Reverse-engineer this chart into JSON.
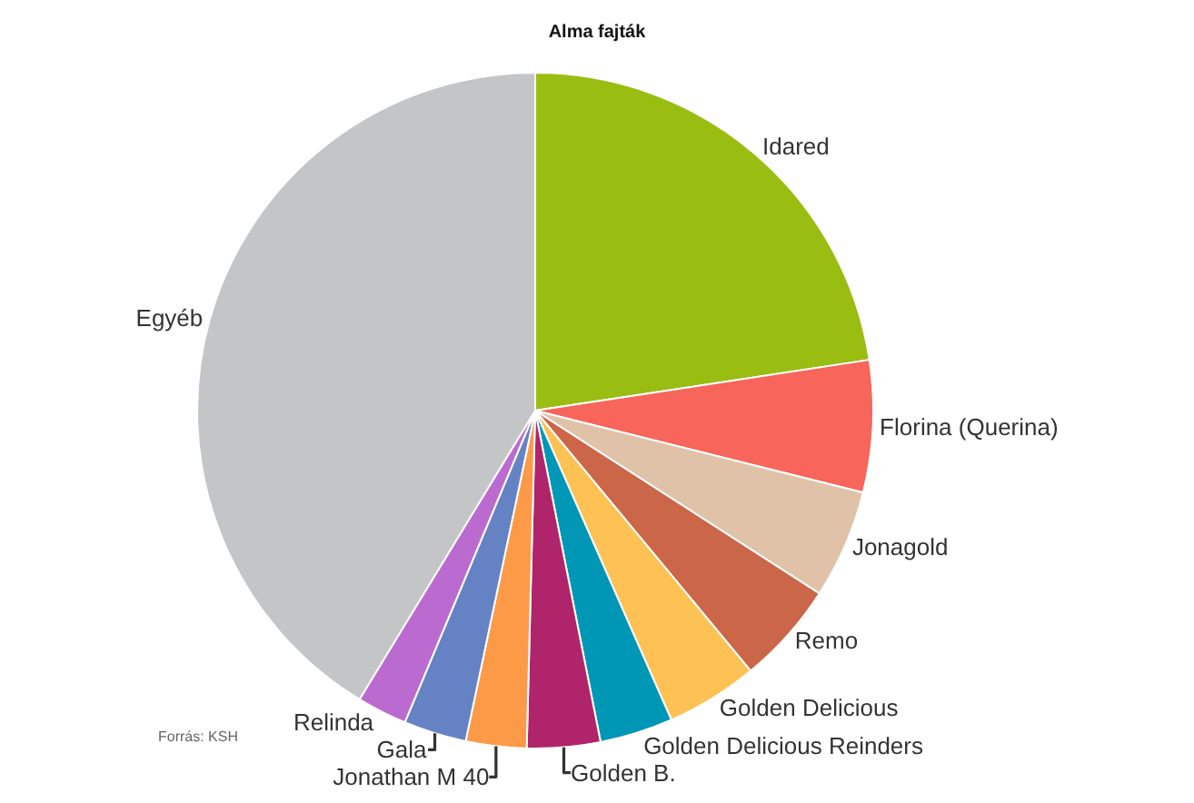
{
  "chart_data": {
    "type": "pie",
    "title": "Alma fajták",
    "categories": [
      "Idared",
      "Florina (Querina)",
      "Jonagold",
      "Remo",
      "Golden Delicious",
      "Golden Delicious Reinders",
      "Golden B.",
      "Jonathan M 40",
      "Gala",
      "Relinda",
      "Egyéb"
    ],
    "values": [
      22.6,
      6.3,
      5.2,
      4.9,
      4.4,
      3.5,
      3.5,
      2.9,
      3.0,
      2.4,
      41.3
    ],
    "colors": [
      "#9abd12",
      "#f8655a",
      "#dfc2a8",
      "#cc6649",
      "#fec153",
      "#0097b7",
      "#b0246c",
      "#fd9a47",
      "#6583c4",
      "#bb6bcf",
      "#c4c5c7"
    ],
    "annotations": [
      "Forrás: KSH"
    ],
    "legend": false
  }
}
